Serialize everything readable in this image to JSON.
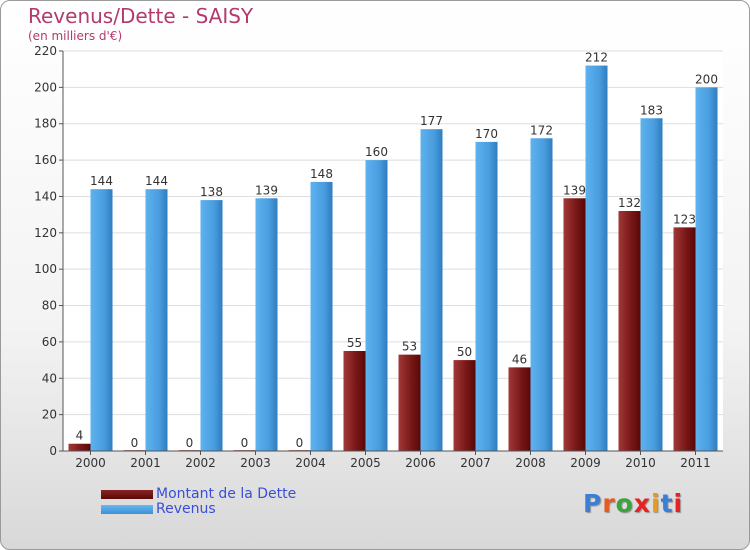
{
  "header": {
    "title": "Revenus/Dette - SAISY",
    "subtitle": "(en milliers d'€)"
  },
  "legend": [
    {
      "name": "Montant de la Dette",
      "color": "#6b1111"
    },
    {
      "name": "Revenus",
      "color": "#4fa3e3"
    }
  ],
  "logo": {
    "text": "Proxiti",
    "letter_colors": [
      "#3a7fd5",
      "#e65b1e",
      "#3aa33a",
      "#e62222",
      "#e69a1e",
      "#3a7fd5",
      "#e62222"
    ]
  },
  "chart_data": {
    "type": "bar",
    "categories": [
      "2000",
      "2001",
      "2002",
      "2003",
      "2004",
      "2005",
      "2006",
      "2007",
      "2008",
      "2009",
      "2010",
      "2011"
    ],
    "series": [
      {
        "name": "Montant de la Dette",
        "values": [
          4,
          0,
          0,
          0,
          0,
          55,
          53,
          50,
          46,
          139,
          132,
          123
        ],
        "color": "#6b1111"
      },
      {
        "name": "Revenus",
        "values": [
          144,
          144,
          138,
          139,
          148,
          160,
          177,
          170,
          172,
          212,
          183,
          200
        ],
        "color": "#4fa3e3"
      }
    ],
    "ylim": [
      0,
      220
    ],
    "yticks": [
      0,
      20,
      40,
      60,
      80,
      100,
      120,
      140,
      160,
      180,
      200,
      220
    ],
    "grid": true
  }
}
